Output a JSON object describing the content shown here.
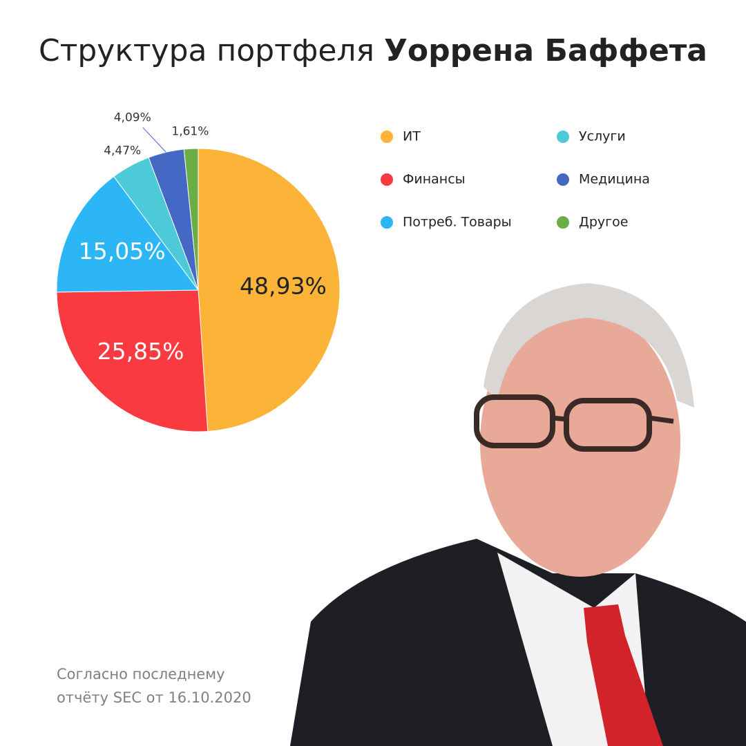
{
  "chart_data": {
    "type": "pie",
    "title_regular": "Структура портфеля",
    "title_bold": "Уоррена Баффета",
    "categories": [
      "ИТ",
      "Финансы",
      "Потреб. Товары",
      "Услуги",
      "Медицина",
      "Другое"
    ],
    "values": [
      48.93,
      25.85,
      15.05,
      4.47,
      4.09,
      1.61
    ],
    "value_labels": [
      "48,93%",
      "25,85%",
      "15,05%",
      "4,47%",
      "4,09%",
      "1,61%"
    ],
    "colors": [
      "#fbb437",
      "#f93a40",
      "#2db6f5",
      "#4dcad8",
      "#4568c4",
      "#6aae45"
    ],
    "note": [
      "Согласно последнему",
      "отчёту SEC от 16.10.2020"
    ]
  }
}
